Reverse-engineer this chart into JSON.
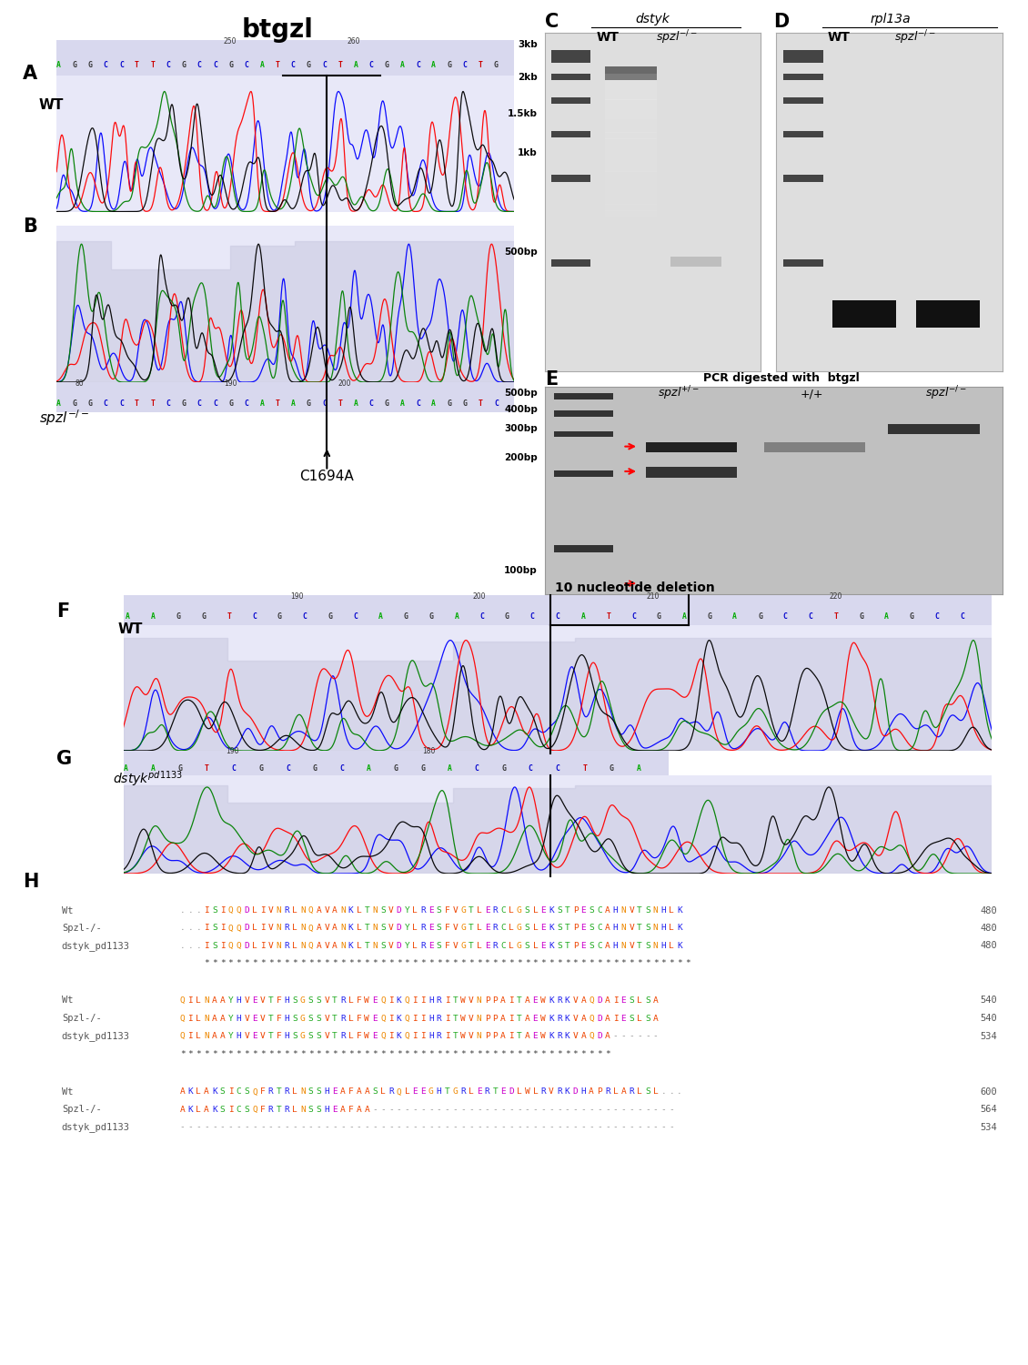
{
  "title": "btgzl",
  "chromatogram_bg": "#e8e8f8",
  "chromatogram_bg_dark": "#d8d8ee",
  "seq_A": "AGGCCTTCGCCGCATCGCTACGACAGCTG",
  "seq_B": "AGGCCTTCGCCGCATAGCTACGACAGGTC",
  "seq_F": "AAGGTCGCGCAGGACGCCATCGAGAGCCTGAGCC",
  "seq_G": "AAGTCGCGCAGGACGCCTGA",
  "mutation_label": "C1694A",
  "deletion_label": "10 nucleotide deletion",
  "C_title": "dstyk",
  "D_title": "rpl13a",
  "E_title": "PCR digested with  btgzl",
  "gel_bg_light": "#e8e8e8",
  "gel_bg_dark": "#c0c0c0",
  "align_block1": [
    [
      "Wt",
      "...ISIQQDLIVNRLNQAVANKLTNSVDYLRESFVGTLERCLGSLEKSTPESCAHNVTSNHLK",
      480
    ],
    [
      "Spzl-/-",
      "...ISIQQDLIVNRLNQAVANKLTNSVDYLRESFVGTLERCLGSLEKSTPESCAHNVTSNHLK",
      480
    ],
    [
      "dstyk_pd1133",
      "...ISIQQDLIVNRLNQAVANKLTNSVDYLRESFVGTLERCLGSLEKSTPESCAHNVTSNHLK",
      480
    ],
    [
      "",
      "   *************************************************************",
      null
    ]
  ],
  "align_block2": [
    [
      "Wt",
      "QILNAAYHVEVTFHSGSSVTRLFWEQIKQIIHRITWVNPPAITAEWKRKVAQDAIESLSA",
      540
    ],
    [
      "Spzl-/-",
      "QILNAAYHVEVTFHSGSSVTRLFWEQIKQIIHRITWVNPPAITAEWKRKVAQDAIESLSA",
      540
    ],
    [
      "dstyk_pd1133",
      "QILNAAYHVEVTFHSGSSVTRLFWEQIKQIIHRITWVNPPAITAEWKRKVAQDA------",
      534
    ],
    [
      "",
      "******************************************************      ",
      null
    ]
  ],
  "align_block3": [
    [
      "Wt",
      "AKLAKSICSQFRTRLNSSHEAFAASLRQLEEGHTGRLERTEDLWLRVRKDHAPRLARLSL...",
      600
    ],
    [
      "Spzl-/-",
      "AKLAKSICSQFRTRLNSSHEAFAA--------------------------------------",
      564
    ],
    [
      "dstyk_pd1133",
      "--------------------------------------------------------------",
      534
    ]
  ]
}
